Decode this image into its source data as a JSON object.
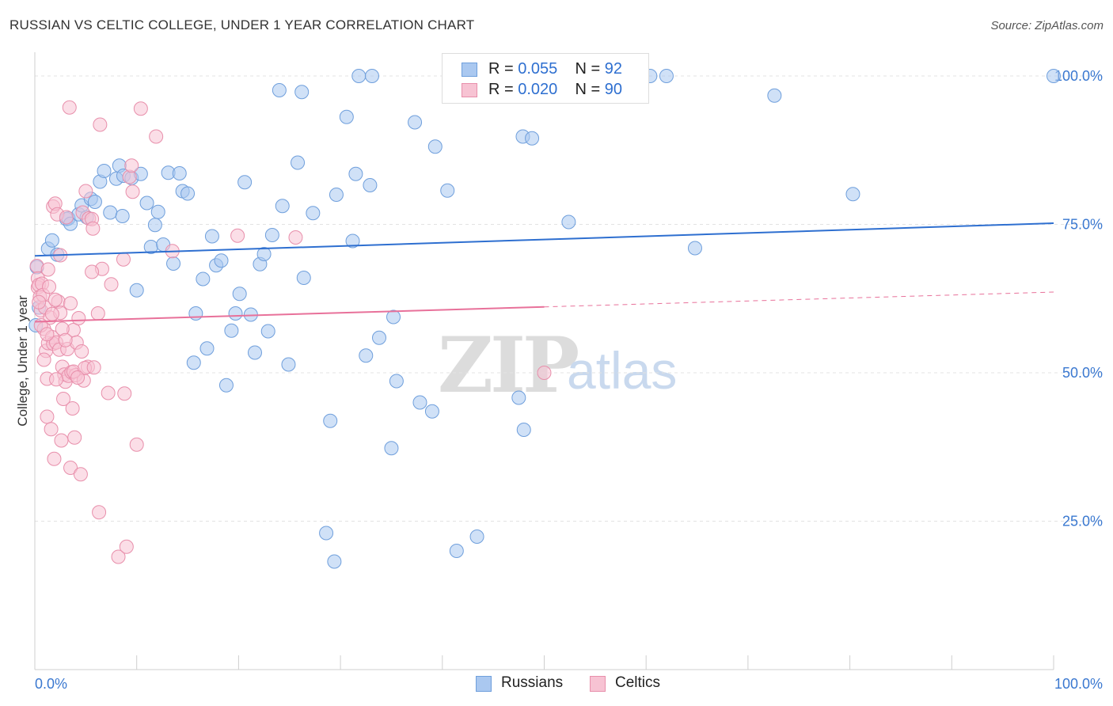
{
  "header": {
    "title": "RUSSIAN VS CELTIC COLLEGE, UNDER 1 YEAR CORRELATION CHART",
    "source": "Source: ZipAtlas.com"
  },
  "watermark": {
    "zip": "ZIP",
    "atlas": "atlas"
  },
  "legend": {
    "rows": [
      {
        "r_label": "R = ",
        "r_value": "0.055",
        "n_label": "N = ",
        "n_value": "92",
        "color": "#aac8f0",
        "border": "#6f9fdc"
      },
      {
        "r_label": "R = ",
        "r_value": "0.020",
        "n_label": "N = ",
        "n_value": "90",
        "color": "#f7c3d3",
        "border": "#e88fab"
      }
    ]
  },
  "bottom_legend": {
    "series1": "Russians",
    "series2": "Celtics"
  },
  "chart_data": {
    "type": "scatter",
    "title": "RUSSIAN VS CELTIC COLLEGE, UNDER 1 YEAR CORRELATION CHART",
    "xlabel": "",
    "ylabel": "College, Under 1 year",
    "xlim": [
      0,
      100
    ],
    "ylim": [
      0,
      104
    ],
    "x_ticks": [
      "0.0%",
      "100.0%"
    ],
    "y_ticks": [
      {
        "value": 25,
        "label": "25.0%"
      },
      {
        "value": 50,
        "label": "50.0%"
      },
      {
        "value": 75,
        "label": "75.0%"
      },
      {
        "value": 100,
        "label": "100.0%"
      }
    ],
    "grid": true,
    "legend_position": "top-center",
    "series": [
      {
        "name": "Russians",
        "color": "#6f9fdc",
        "fill": "#aac8f0",
        "trend": {
          "x": [
            0,
            100
          ],
          "y": [
            69.7,
            75.2
          ],
          "color": "#2e6fd0"
        },
        "points": [
          [
            0.2,
            67.8
          ],
          [
            1.3,
            70.9
          ],
          [
            1.7,
            72.3
          ],
          [
            2.2,
            69.9
          ],
          [
            3.1,
            75.9
          ],
          [
            3.3,
            76.0
          ],
          [
            3.5,
            75.1
          ],
          [
            4.3,
            76.7
          ],
          [
            4.6,
            78.2
          ],
          [
            5.1,
            76.2
          ],
          [
            5.5,
            79.3
          ],
          [
            5.9,
            78.8
          ],
          [
            6.4,
            82.2
          ],
          [
            6.8,
            84.0
          ],
          [
            7.4,
            77.0
          ],
          [
            8.0,
            82.7
          ],
          [
            8.3,
            84.9
          ],
          [
            8.6,
            76.4
          ],
          [
            8.7,
            83.2
          ],
          [
            9.5,
            82.8
          ],
          [
            10.4,
            83.5
          ],
          [
            10.0,
            63.9
          ],
          [
            11.0,
            78.6
          ],
          [
            11.4,
            71.2
          ],
          [
            11.8,
            74.9
          ],
          [
            12.1,
            77.1
          ],
          [
            12.6,
            71.6
          ],
          [
            13.1,
            83.7
          ],
          [
            13.6,
            68.4
          ],
          [
            14.2,
            83.6
          ],
          [
            14.5,
            80.6
          ],
          [
            15.0,
            80.2
          ],
          [
            15.8,
            60.0
          ],
          [
            15.6,
            51.7
          ],
          [
            16.5,
            65.8
          ],
          [
            16.9,
            54.1
          ],
          [
            17.4,
            73.0
          ],
          [
            17.8,
            68.1
          ],
          [
            18.3,
            68.9
          ],
          [
            18.8,
            47.9
          ],
          [
            19.3,
            57.1
          ],
          [
            19.7,
            60.0
          ],
          [
            20.1,
            63.3
          ],
          [
            20.6,
            82.1
          ],
          [
            21.2,
            59.8
          ],
          [
            21.6,
            53.4
          ],
          [
            22.1,
            68.3
          ],
          [
            22.5,
            70.0
          ],
          [
            22.9,
            57.0
          ],
          [
            23.3,
            73.2
          ],
          [
            24.0,
            97.6
          ],
          [
            24.3,
            78.1
          ],
          [
            24.9,
            51.4
          ],
          [
            25.8,
            85.4
          ],
          [
            26.4,
            66.0
          ],
          [
            26.2,
            97.3
          ],
          [
            27.3,
            76.9
          ],
          [
            28.6,
            23.0
          ],
          [
            29.0,
            41.9
          ],
          [
            29.4,
            18.2
          ],
          [
            29.6,
            80.0
          ],
          [
            30.6,
            93.1
          ],
          [
            31.2,
            72.2
          ],
          [
            31.5,
            83.5
          ],
          [
            31.8,
            100.0
          ],
          [
            32.5,
            52.9
          ],
          [
            32.9,
            81.6
          ],
          [
            33.1,
            100.0
          ],
          [
            33.8,
            55.9
          ],
          [
            35.0,
            37.3
          ],
          [
            35.2,
            59.4
          ],
          [
            35.5,
            48.6
          ],
          [
            37.3,
            92.2
          ],
          [
            37.8,
            45.0
          ],
          [
            39.0,
            43.5
          ],
          [
            39.3,
            88.1
          ],
          [
            40.5,
            80.7
          ],
          [
            41.4,
            20.0
          ],
          [
            43.4,
            22.4
          ],
          [
            47.5,
            45.8
          ],
          [
            47.9,
            89.8
          ],
          [
            48.0,
            40.4
          ],
          [
            48.8,
            89.5
          ],
          [
            52.4,
            75.4
          ],
          [
            60.4,
            100.0
          ],
          [
            62.0,
            100.0
          ],
          [
            64.8,
            71.0
          ],
          [
            72.6,
            96.7
          ],
          [
            80.3,
            80.1
          ],
          [
            100.0,
            100.0
          ],
          [
            0.4,
            61.0
          ],
          [
            0.1,
            58.0
          ]
        ]
      },
      {
        "name": "Celtics",
        "color": "#e88fab",
        "fill": "#f7c3d3",
        "trend": {
          "x": [
            0,
            50
          ],
          "y": [
            58.6,
            61.1
          ],
          "dashed_to": [
            100,
            63.6
          ],
          "color": "#e8719a"
        },
        "points": [
          [
            0.2,
            68.0
          ],
          [
            0.3,
            65.9
          ],
          [
            0.3,
            64.4
          ],
          [
            0.4,
            64.8
          ],
          [
            0.5,
            62.8
          ],
          [
            0.6,
            60.5
          ],
          [
            0.7,
            65.0
          ],
          [
            0.8,
            63.1
          ],
          [
            0.9,
            57.4
          ],
          [
            1.0,
            61.0
          ],
          [
            1.1,
            53.7
          ],
          [
            1.2,
            49.0
          ],
          [
            1.2,
            42.6
          ],
          [
            1.3,
            55.0
          ],
          [
            1.4,
            64.5
          ],
          [
            1.5,
            59.3
          ],
          [
            1.6,
            40.5
          ],
          [
            1.7,
            56.0
          ],
          [
            1.8,
            78.0
          ],
          [
            1.8,
            54.9
          ],
          [
            1.9,
            35.5
          ],
          [
            2.0,
            78.5
          ],
          [
            2.1,
            55.1
          ],
          [
            2.2,
            76.7
          ],
          [
            2.3,
            62.0
          ],
          [
            2.4,
            53.9
          ],
          [
            2.5,
            60.1
          ],
          [
            2.5,
            69.8
          ],
          [
            2.6,
            38.6
          ],
          [
            2.7,
            51.0
          ],
          [
            2.8,
            45.6
          ],
          [
            2.9,
            49.7
          ],
          [
            3.0,
            48.5
          ],
          [
            3.1,
            76.2
          ],
          [
            3.2,
            54.0
          ],
          [
            3.3,
            49.5
          ],
          [
            3.4,
            94.7
          ],
          [
            3.5,
            34.0
          ],
          [
            3.6,
            50.1
          ],
          [
            3.7,
            44.0
          ],
          [
            3.8,
            57.2
          ],
          [
            3.9,
            39.1
          ],
          [
            4.0,
            49.6
          ],
          [
            4.1,
            55.1
          ],
          [
            4.3,
            59.2
          ],
          [
            4.5,
            32.9
          ],
          [
            4.7,
            77.0
          ],
          [
            4.8,
            48.7
          ],
          [
            5.0,
            80.6
          ],
          [
            5.2,
            51.0
          ],
          [
            5.3,
            76.0
          ],
          [
            5.6,
            75.9
          ],
          [
            5.7,
            74.3
          ],
          [
            6.2,
            60.0
          ],
          [
            6.3,
            26.5
          ],
          [
            6.4,
            91.8
          ],
          [
            6.6,
            67.5
          ],
          [
            7.2,
            46.6
          ],
          [
            7.5,
            64.9
          ],
          [
            8.2,
            19.0
          ],
          [
            8.7,
            69.1
          ],
          [
            8.8,
            46.5
          ],
          [
            9.0,
            20.7
          ],
          [
            9.3,
            83.0
          ],
          [
            9.5,
            84.9
          ],
          [
            9.6,
            80.5
          ],
          [
            10.0,
            37.9
          ],
          [
            10.4,
            94.5
          ],
          [
            11.9,
            89.8
          ],
          [
            13.5,
            70.5
          ],
          [
            19.9,
            73.1
          ],
          [
            25.6,
            72.8
          ],
          [
            50.0,
            50.0
          ],
          [
            0.6,
            58.0
          ],
          [
            1.3,
            67.4
          ],
          [
            2.0,
            62.3
          ],
          [
            3.8,
            50.2
          ],
          [
            4.6,
            53.6
          ],
          [
            5.6,
            67.0
          ],
          [
            0.9,
            52.2
          ],
          [
            1.7,
            59.9
          ],
          [
            2.7,
            57.4
          ],
          [
            3.5,
            61.7
          ],
          [
            4.9,
            50.8
          ],
          [
            5.8,
            50.9
          ],
          [
            1.2,
            56.5
          ],
          [
            2.1,
            48.9
          ],
          [
            0.4,
            61.9
          ],
          [
            3.0,
            55.5
          ],
          [
            4.2,
            49.2
          ]
        ]
      }
    ]
  }
}
